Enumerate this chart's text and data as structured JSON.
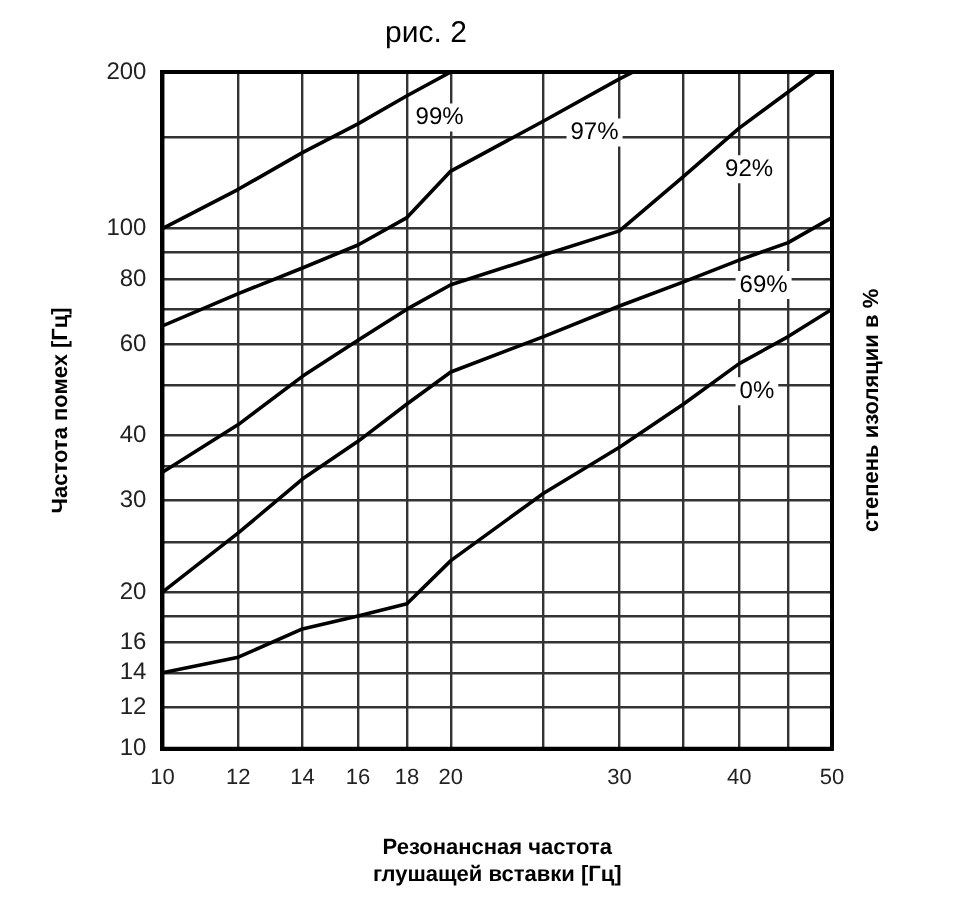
{
  "chart_data": {
    "type": "line",
    "title": "рис. 2",
    "xlabel": "Резонансная частота\nглушащей вставки [Гц]",
    "ylabel": "Частота помех [Гц]",
    "y2label": "степень изоляции в %",
    "log": "xy",
    "xlim": [
      10,
      50
    ],
    "xticks": [
      10,
      12,
      14,
      16,
      18,
      20,
      {
        "value": 25,
        "label": null
      },
      30,
      {
        "value": 35,
        "label": null
      },
      40,
      {
        "value": 45,
        "label": null
      },
      50
    ],
    "ylim": [
      10,
      200
    ],
    "yticks": [
      10,
      12,
      14,
      16,
      {
        "value": 18,
        "label": null
      },
      20,
      {
        "value": 25,
        "label": null
      },
      30,
      {
        "value": 35,
        "label": null
      },
      40,
      {
        "value": 50,
        "label": null
      },
      60,
      {
        "value": 70,
        "label": null
      },
      80,
      {
        "value": 90,
        "label": null
      },
      100,
      {
        "value": 150,
        "label": null
      },
      200
    ],
    "grid": true,
    "legend": false,
    "marker": "none",
    "line_style": "solid",
    "series": [
      {
        "name": "99%",
        "color": "#000000",
        "x": [
          10,
          12,
          14,
          16,
          18,
          20
        ],
        "values": [
          100,
          119,
          140,
          159,
          180,
          200
        ]
      },
      {
        "name": "97%",
        "color": "#000000",
        "x": [
          10,
          12,
          14,
          16,
          18,
          20,
          25,
          30,
          31
        ],
        "values": [
          65,
          75,
          84,
          93,
          105,
          129,
          161,
          194,
          200
        ]
      },
      {
        "name": "92%",
        "color": "#000000",
        "x": [
          10,
          12,
          14,
          16,
          18,
          20,
          25,
          30,
          35,
          40,
          45,
          48
        ],
        "values": [
          34,
          42,
          52,
          61,
          70,
          78,
          89,
          99,
          126,
          156,
          183,
          200
        ]
      },
      {
        "name": "69%",
        "color": "#000000",
        "x": [
          10,
          12,
          14,
          16,
          18,
          20,
          25,
          30,
          35,
          40,
          45,
          50
        ],
        "values": [
          20,
          26,
          33,
          39,
          46,
          53,
          62,
          71,
          79,
          87,
          94,
          105
        ]
      },
      {
        "name": "0%",
        "color": "#000000",
        "x": [
          10,
          12,
          14,
          16,
          18,
          20,
          25,
          30,
          35,
          40,
          45,
          50
        ],
        "values": [
          14,
          15,
          17,
          18,
          19,
          23,
          31,
          38,
          46,
          55,
          62,
          70
        ]
      }
    ]
  }
}
